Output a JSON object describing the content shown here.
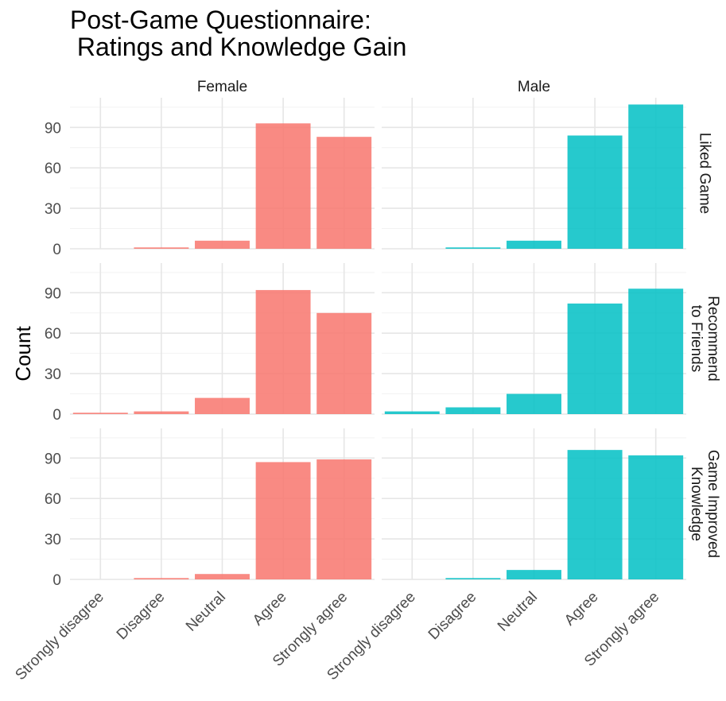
{
  "chart_data": {
    "type": "bar",
    "title_lines": [
      "Post-Game Questionnaire:",
      " Ratings and Knowledge Gain"
    ],
    "ylabel": "Count",
    "xlabel": "",
    "categories": [
      "Strongly disagree",
      "Disagree",
      "Neutral",
      "Agree",
      "Strongly agree"
    ],
    "columns": [
      "Female",
      "Male"
    ],
    "rows": [
      {
        "label_lines": [
          "Liked Game"
        ]
      },
      {
        "label_lines": [
          "Recommend",
          "to Friends"
        ]
      },
      {
        "label_lines": [
          "Game Improved",
          "Knowledge"
        ]
      }
    ],
    "yticks": [
      0,
      30,
      60,
      90
    ],
    "ylim": [
      0,
      112
    ],
    "colors": {
      "Female": "#f8766d",
      "Male": "#00bfc4"
    },
    "grid": true,
    "panels": [
      {
        "row": 0,
        "col": 0,
        "values": [
          0,
          1,
          6,
          93,
          83
        ]
      },
      {
        "row": 0,
        "col": 1,
        "values": [
          0,
          1,
          6,
          84,
          107
        ]
      },
      {
        "row": 1,
        "col": 0,
        "values": [
          1,
          2,
          12,
          92,
          75
        ]
      },
      {
        "row": 1,
        "col": 1,
        "values": [
          2,
          5,
          15,
          82,
          93
        ]
      },
      {
        "row": 2,
        "col": 0,
        "values": [
          0,
          1,
          4,
          87,
          89
        ]
      },
      {
        "row": 2,
        "col": 1,
        "values": [
          0,
          1,
          7,
          96,
          92
        ]
      }
    ]
  }
}
